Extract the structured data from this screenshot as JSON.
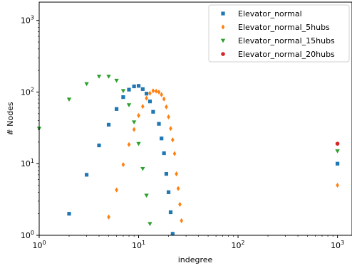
{
  "chart_data": {
    "type": "scatter",
    "xlabel": "indegree",
    "ylabel": "# Nodes",
    "xscale": "log",
    "yscale": "log",
    "xlim": [
      1,
      1400
    ],
    "ylim": [
      1,
      1800
    ],
    "x_ticks": [
      {
        "value": 1,
        "base": "10",
        "exp": "0"
      },
      {
        "value": 10,
        "base": "10",
        "exp": "1"
      },
      {
        "value": 100,
        "base": "10",
        "exp": "2"
      },
      {
        "value": 1000,
        "base": "10",
        "exp": "3"
      }
    ],
    "y_ticks": [
      {
        "value": 1,
        "base": "10",
        "exp": "0"
      },
      {
        "value": 10,
        "base": "10",
        "exp": "1"
      },
      {
        "value": 100,
        "base": "10",
        "exp": "2"
      },
      {
        "value": 1000,
        "base": "10",
        "exp": "3"
      }
    ],
    "grid": false,
    "legend_position": "top-right",
    "series": [
      {
        "name": "Elevator_normal",
        "color": "#1f77b4",
        "marker": "square",
        "points": [
          [
            2,
            2
          ],
          [
            3,
            7
          ],
          [
            4,
            18
          ],
          [
            5,
            35
          ],
          [
            6,
            58
          ],
          [
            7,
            85
          ],
          [
            8,
            108
          ],
          [
            9,
            120
          ],
          [
            10,
            122
          ],
          [
            11,
            110
          ],
          [
            12,
            95
          ],
          [
            13,
            74
          ],
          [
            14,
            53
          ],
          [
            16,
            36
          ],
          [
            17,
            22.5
          ],
          [
            18,
            14
          ],
          [
            19,
            7.2
          ],
          [
            20,
            4
          ],
          [
            21,
            2.1
          ],
          [
            22,
            1.05
          ],
          [
            1000,
            10
          ]
        ]
      },
      {
        "name": "Elevator_normal_5hubs",
        "color": "#ff7f0e",
        "marker": "diamond",
        "points": [
          [
            5,
            1.8
          ],
          [
            6,
            4.3
          ],
          [
            7,
            9.7
          ],
          [
            8,
            18.5
          ],
          [
            9,
            30
          ],
          [
            10,
            47
          ],
          [
            11,
            63
          ],
          [
            12,
            82
          ],
          [
            13,
            96
          ],
          [
            14,
            104
          ],
          [
            15,
            103
          ],
          [
            16,
            100
          ],
          [
            17,
            92
          ],
          [
            18,
            80
          ],
          [
            19,
            62
          ],
          [
            20,
            45
          ],
          [
            21,
            31
          ],
          [
            22,
            21.5
          ],
          [
            23,
            13.8
          ],
          [
            24,
            7.2
          ],
          [
            25,
            4.5
          ],
          [
            26,
            2.7
          ],
          [
            27,
            1.6
          ],
          [
            1000,
            5
          ]
        ]
      },
      {
        "name": "Elevator_normal_15hubs",
        "color": "#2ca02c",
        "marker": "triangle-down",
        "points": [
          [
            1,
            31
          ],
          [
            2,
            79
          ],
          [
            3,
            130
          ],
          [
            4,
            165
          ],
          [
            5,
            165
          ],
          [
            6,
            145
          ],
          [
            7,
            104
          ],
          [
            8,
            66
          ],
          [
            9,
            38
          ],
          [
            10,
            19
          ],
          [
            11,
            8.5
          ],
          [
            12,
            3.6
          ],
          [
            13,
            1.45
          ],
          [
            1000,
            15
          ]
        ]
      },
      {
        "name": "Elevator_normal_20hubs",
        "color": "#d62728",
        "marker": "circle",
        "points": [
          [
            1000,
            19
          ]
        ]
      }
    ]
  }
}
